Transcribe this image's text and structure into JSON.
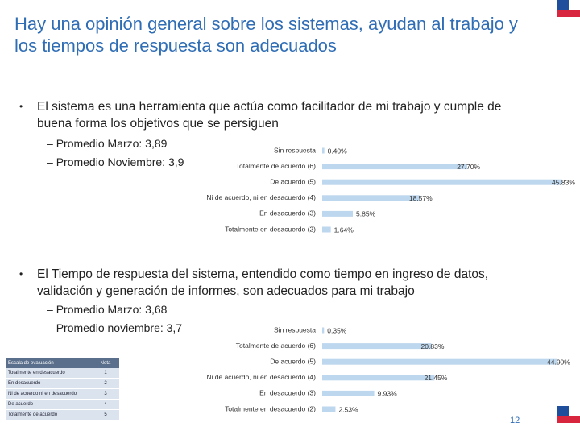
{
  "title": "Hay una opinión general sobre los sistemas, ayudan al trabajo y los tiempos de respuesta son adecuados",
  "sections": [
    {
      "text": "El sistema es una herramienta que actúa como facilitador de mi trabajo y cumple de buena forma los objetivos que se persiguen",
      "items": [
        "Promedio  Marzo: 3,89",
        "Promedio Noviembre: 3,9"
      ]
    },
    {
      "text": "El Tiempo de respuesta del sistema, entendido como tiempo en ingreso de datos, validación y generación de informes, son adecuados para mi trabajo",
      "items": [
        "Promedio Marzo:  3,68",
        "Promedio noviembre:  3,7"
      ]
    }
  ],
  "chart_data": [
    {
      "type": "barh",
      "color": "#bdd7ee",
      "categories": [
        "Sin respuesta",
        "Totalmente de acuerdo (6)",
        "De acuerdo (5)",
        "Ni de acuerdo, ni en desacuerdo (4)",
        "En desacuerdo (3)",
        "Totalmente en desacuerdo (2)"
      ],
      "values": [
        0.4,
        27.7,
        45.83,
        18.57,
        5.85,
        1.64
      ],
      "value_labels": [
        "0.40%",
        "27.70%",
        "45.83%",
        "18.57%",
        "5.85%",
        "1.64%"
      ]
    },
    {
      "type": "barh",
      "color": "#bdd7ee",
      "categories": [
        "Sin respuesta",
        "Totalmente de acuerdo (6)",
        "De acuerdo (5)",
        "Ni de acuerdo, ni en desacuerdo (4)",
        "En desacuerdo (3)",
        "Totalmente en desacuerdo (2)"
      ],
      "values": [
        0.35,
        20.83,
        44.9,
        21.45,
        9.93,
        2.53
      ],
      "value_labels": [
        "0.35%",
        "20.83%",
        "44.90%",
        "21.45%",
        "9.93%",
        "2.53%"
      ]
    }
  ],
  "table": {
    "header": [
      "Escala de evaluación",
      "Nota"
    ],
    "rows": [
      [
        "Totalmente en desacuerdo",
        "1"
      ],
      [
        "En desacuerdo",
        "2"
      ],
      [
        "Ni de acuerdo ni en desacuerdo",
        "3"
      ],
      [
        "De acuerdo",
        "4"
      ],
      [
        "Totalmente de acuerdo",
        "5"
      ]
    ]
  },
  "page_number": "12"
}
